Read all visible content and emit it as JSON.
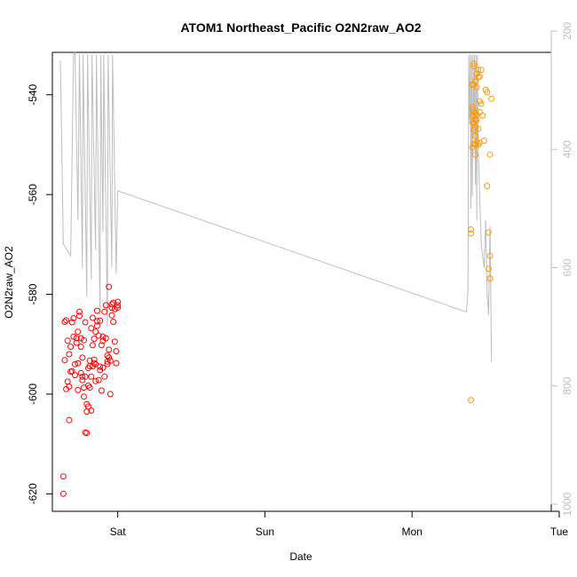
{
  "chart_data": {
    "type": "scatter",
    "title": "ATOM1 Northeast_Pacific O2N2raw_AO2",
    "xlabel": "Date",
    "ylabel": "O2N2raw_AO2",
    "x_ticks": [
      "Sat",
      "Sun",
      "Mon",
      "Tue"
    ],
    "y_ticks": [
      -620,
      -600,
      -580,
      -560,
      -540
    ],
    "y2_ticks": [
      200,
      400,
      600,
      800,
      1000
    ],
    "xlim_days": [
      -0.444,
      2.946
    ],
    "ylim": [
      -623.5,
      -531.5
    ],
    "y2lim": [
      1012,
      236
    ],
    "y2_reversed": true,
    "colors": {
      "series_1": "#ff0000",
      "series_2": "#ff9900",
      "altitude_line": "#bebebe",
      "axis": "#000000",
      "axis_right": "#bebebe"
    },
    "series": [
      {
        "color": "#ff0000",
        "x": [
          -0.37,
          -0.37,
          -0.36,
          -0.36,
          -0.35,
          -0.35,
          -0.34,
          -0.34,
          -0.33,
          -0.33,
          -0.33,
          -0.32,
          -0.32,
          -0.31,
          -0.31,
          -0.3,
          -0.3,
          -0.29,
          -0.29,
          -0.28,
          -0.28,
          -0.27,
          -0.27,
          -0.27,
          -0.26,
          -0.26,
          -0.25,
          -0.25,
          -0.25,
          -0.24,
          -0.24,
          -0.24,
          -0.23,
          -0.23,
          -0.23,
          -0.22,
          -0.22,
          -0.22,
          -0.21,
          -0.21,
          -0.21,
          -0.2,
          -0.2,
          -0.2,
          -0.19,
          -0.19,
          -0.19,
          -0.18,
          -0.18,
          -0.18,
          -0.17,
          -0.17,
          -0.17,
          -0.16,
          -0.16,
          -0.16,
          -0.15,
          -0.15,
          -0.15,
          -0.14,
          -0.14,
          -0.14,
          -0.13,
          -0.13,
          -0.12,
          -0.12,
          -0.12,
          -0.11,
          -0.11,
          -0.1,
          -0.1,
          -0.1,
          -0.09,
          -0.09,
          -0.08,
          -0.08,
          -0.07,
          -0.07,
          -0.07,
          -0.06,
          -0.06,
          -0.06,
          -0.05,
          -0.05,
          -0.04,
          -0.04,
          -0.04,
          -0.03,
          -0.03,
          -0.02,
          -0.02,
          -0.01,
          -0.01,
          0.0,
          0.0,
          0.0
        ],
        "y": [
          -620.0,
          -616.5,
          -585.5,
          -593.2,
          -599.0,
          -585.2,
          -597.5,
          -589.3,
          -598.5,
          -592.0,
          -605.2,
          -595.5,
          -590.5,
          -595.4,
          -585.6,
          -588.5,
          -584.8,
          -596.2,
          -594.0,
          -588.8,
          -589.7,
          -599.2,
          -593.8,
          -587.5,
          -583.5,
          -584.3,
          -588.8,
          -595.8,
          -590.5,
          -592.7,
          -597.2,
          -596.5,
          -598.7,
          -600.5,
          -589.2,
          -607.7,
          -585.6,
          -596.5,
          -602.0,
          -603.5,
          -607.8,
          -598.3,
          -594.8,
          -602.5,
          -598.7,
          -594.4,
          -593.3,
          -596.5,
          -586.8,
          -603.3,
          -594.4,
          -584.7,
          -590.2,
          -593.1,
          -593.8,
          -588.9,
          -597.4,
          -594.0,
          -587.5,
          -585.4,
          -586.3,
          -583.3,
          -588.3,
          -597.2,
          -594.5,
          -595.2,
          -585.3,
          -590.2,
          -599.3,
          -589.3,
          -588.5,
          -594.7,
          -596.5,
          -583.5,
          -582.2,
          -588.8,
          -594.0,
          -593.5,
          -592.3,
          -591.1,
          -592.7,
          -578.5,
          -600.0,
          -593.3,
          -582.0,
          -582.7,
          -584.2,
          -585.5,
          -581.7,
          -589.5,
          -583.0,
          -591.4,
          -593.8,
          -582.2,
          -581.5,
          -582.7
        ]
      },
      {
        "color": "#ff9900",
        "x": [
          2.4,
          2.4,
          2.4,
          2.41,
          2.41,
          2.41,
          2.41,
          2.41,
          2.41,
          2.42,
          2.42,
          2.42,
          2.42,
          2.42,
          2.42,
          2.42,
          2.43,
          2.43,
          2.43,
          2.43,
          2.43,
          2.43,
          2.43,
          2.44,
          2.44,
          2.44,
          2.44,
          2.44,
          2.45,
          2.45,
          2.45,
          2.45,
          2.46,
          2.46,
          2.46,
          2.46,
          2.47,
          2.47,
          2.48,
          2.49,
          2.5,
          2.51,
          2.51,
          2.52,
          2.52,
          2.53,
          2.53,
          2.53,
          2.54
        ],
        "y": [
          -601.2,
          -567.8,
          -567.0,
          -550.6,
          -545.5,
          -544.1,
          -543.0,
          -542.5,
          -538.0,
          -533.8,
          -534.3,
          -538.0,
          -543.5,
          -545.6,
          -547.0,
          -549.8,
          -537.3,
          -543.6,
          -545.1,
          -546.5,
          -548.3,
          -550.0,
          -552.0,
          -535.8,
          -538.5,
          -544.0,
          -545.0,
          -549.5,
          -535.0,
          -536.5,
          -546.8,
          -550.0,
          -536.3,
          -541.3,
          -543.5,
          -549.6,
          -535.0,
          -541.8,
          -544.2,
          -549.2,
          -539.0,
          -539.5,
          -558.3,
          -574.9,
          -567.6,
          -552.0,
          -576.8,
          -572.3,
          -540.8
        ]
      }
    ],
    "altitude_line": {
      "color": "#bebebe",
      "x": [
        -0.39,
        -0.37,
        -0.32,
        -0.3,
        -0.29,
        -0.27,
        -0.26,
        -0.24,
        -0.235,
        -0.21,
        -0.205,
        -0.18,
        -0.175,
        -0.15,
        -0.145,
        -0.12,
        -0.115,
        -0.1,
        -0.095,
        -0.07,
        -0.065,
        -0.04,
        -0.035,
        -0.01,
        0.0,
        2.37,
        2.38,
        2.385,
        2.39,
        2.395,
        2.4,
        2.405,
        2.41,
        2.415,
        2.42,
        2.425,
        2.43,
        2.435,
        2.44,
        2.445,
        2.45,
        2.46,
        2.47,
        2.48,
        2.49,
        2.5,
        2.51,
        2.52,
        2.53,
        2.54
      ],
      "y": [
        250,
        560,
        580,
        240,
        200,
        520,
        240,
        600,
        240,
        650,
        240,
        620,
        240,
        570,
        240,
        680,
        240,
        540,
        240,
        700,
        240,
        600,
        240,
        610,
        470,
        675,
        640,
        240,
        350,
        240,
        500,
        240,
        480,
        240,
        380,
        240,
        460,
        240,
        520,
        240,
        400,
        480,
        560,
        580,
        600,
        520,
        640,
        680,
        530,
        760
      ]
    }
  }
}
